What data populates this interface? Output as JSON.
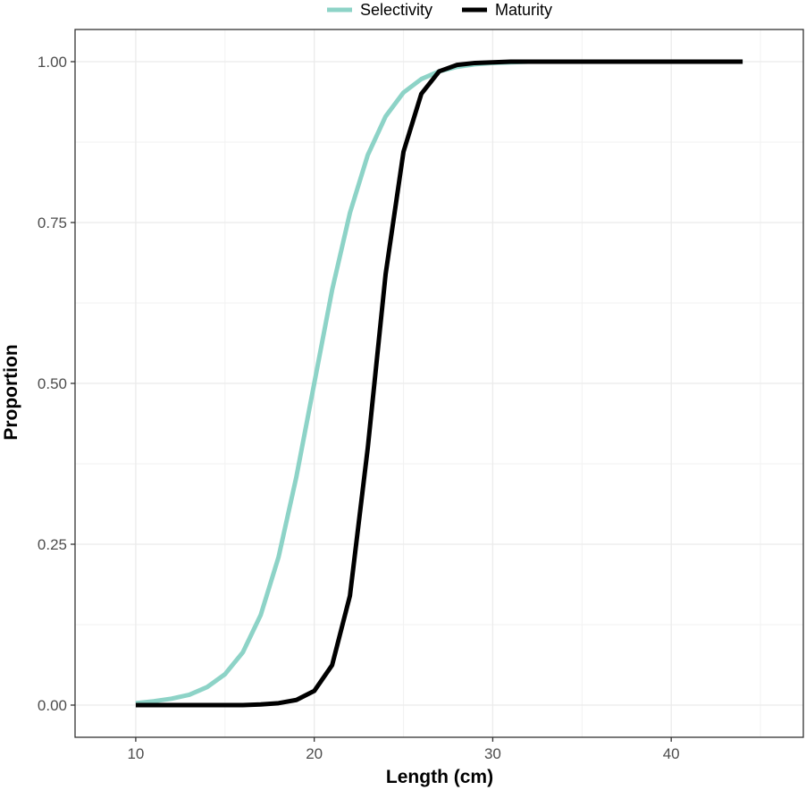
{
  "chart_data": {
    "type": "line",
    "xlabel": "Length (cm)",
    "ylabel": "Proportion",
    "xlim": [
      6.6,
      47.4
    ],
    "ylim": [
      -0.05,
      1.05
    ],
    "x_ticks": [
      10,
      20,
      30,
      40
    ],
    "x_tick_labels": [
      "10",
      "20",
      "30",
      "40"
    ],
    "y_ticks": [
      0,
      0.25,
      0.5,
      0.75,
      1
    ],
    "y_tick_labels": [
      "0.00",
      "0.25",
      "0.50",
      "0.75",
      "1.00"
    ],
    "grid": true,
    "legend_position": "top",
    "series": [
      {
        "name": "Selectivity",
        "color": "#8dd3c7",
        "x": [
          10,
          11,
          12,
          13,
          14,
          15,
          16,
          17,
          18,
          19,
          20,
          21,
          22,
          23,
          24,
          25,
          26,
          27,
          28,
          29,
          30,
          31,
          32,
          33,
          34,
          35,
          36,
          37,
          38,
          39,
          40,
          41,
          42,
          43,
          44
        ],
        "y": [
          0.003,
          0.006,
          0.01,
          0.016,
          0.028,
          0.048,
          0.082,
          0.14,
          0.23,
          0.355,
          0.5,
          0.645,
          0.765,
          0.855,
          0.915,
          0.952,
          0.973,
          0.985,
          0.992,
          0.996,
          0.998,
          0.999,
          1,
          1,
          1,
          1,
          1,
          1,
          1,
          1,
          1,
          1,
          1,
          1,
          1
        ]
      },
      {
        "name": "Maturity",
        "color": "#000000",
        "x": [
          10,
          11,
          12,
          13,
          14,
          15,
          16,
          17,
          18,
          19,
          20,
          21,
          22,
          23,
          24,
          25,
          26,
          27,
          28,
          29,
          30,
          31,
          32,
          33,
          34,
          35,
          36,
          37,
          38,
          39,
          40,
          41,
          42,
          43,
          44
        ],
        "y": [
          0,
          0,
          0,
          0,
          0,
          0,
          0,
          0.001,
          0.003,
          0.008,
          0.022,
          0.062,
          0.17,
          0.4,
          0.67,
          0.86,
          0.95,
          0.985,
          0.995,
          0.998,
          0.999,
          1,
          1,
          1,
          1,
          1,
          1,
          1,
          1,
          1,
          1,
          1,
          1,
          1,
          1
        ]
      }
    ]
  }
}
